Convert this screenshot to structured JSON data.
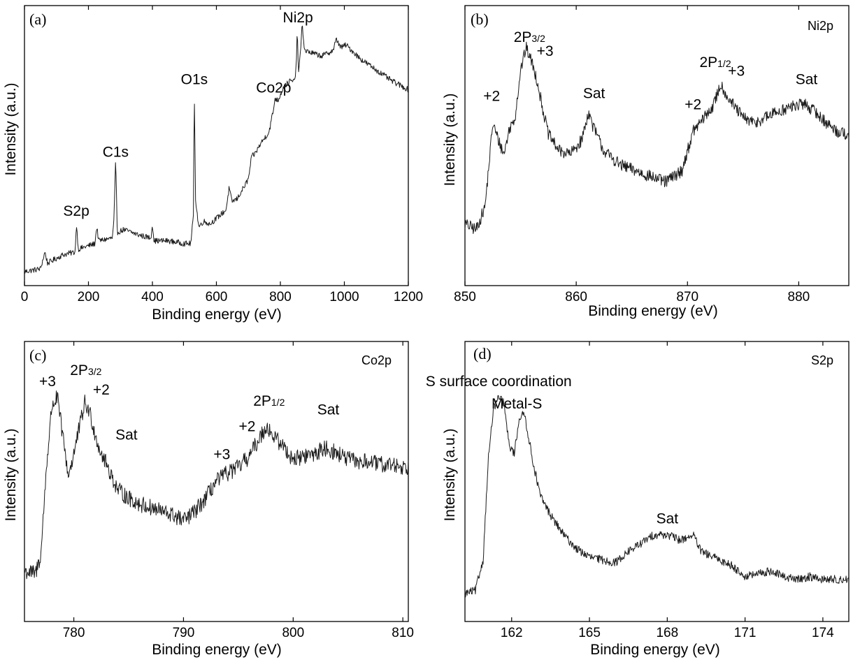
{
  "chart_data": [
    {
      "type": "line",
      "panel_label": "(a)",
      "corner_label": "",
      "xlabel": "Binding energy (eV)",
      "ylabel": "Intensity (a.u.)",
      "xlim": [
        0,
        1200
      ],
      "ylim": [
        0,
        100
      ],
      "xticks": [
        0,
        200,
        400,
        600,
        800,
        1000,
        1200
      ],
      "y_tick_labels": false,
      "grid": false,
      "legend": "none",
      "keypoints": [
        [
          0,
          5
        ],
        [
          50,
          6
        ],
        [
          64,
          12
        ],
        [
          72,
          8
        ],
        [
          120,
          11
        ],
        [
          158,
          12
        ],
        [
          163,
          22
        ],
        [
          168,
          13
        ],
        [
          220,
          15
        ],
        [
          226,
          21
        ],
        [
          232,
          16
        ],
        [
          275,
          17
        ],
        [
          280,
          24
        ],
        [
          285,
          45
        ],
        [
          290,
          19
        ],
        [
          310,
          20
        ],
        [
          360,
          18
        ],
        [
          395,
          17
        ],
        [
          400,
          22
        ],
        [
          405,
          16
        ],
        [
          450,
          16
        ],
        [
          500,
          15
        ],
        [
          520,
          15
        ],
        [
          528,
          25
        ],
        [
          531,
          70
        ],
        [
          535,
          30
        ],
        [
          545,
          21
        ],
        [
          560,
          23
        ],
        [
          580,
          22
        ],
        [
          600,
          24
        ],
        [
          630,
          27
        ],
        [
          640,
          35
        ],
        [
          648,
          30
        ],
        [
          665,
          31
        ],
        [
          700,
          38
        ],
        [
          710,
          46
        ],
        [
          720,
          47
        ],
        [
          740,
          51
        ],
        [
          765,
          55
        ],
        [
          775,
          61
        ],
        [
          779,
          63
        ],
        [
          783,
          67
        ],
        [
          792,
          66
        ],
        [
          810,
          71
        ],
        [
          830,
          73
        ],
        [
          845,
          73
        ],
        [
          850,
          80
        ],
        [
          853,
          92
        ],
        [
          856,
          76
        ],
        [
          862,
          82
        ],
        [
          868,
          93
        ],
        [
          876,
          84
        ],
        [
          900,
          83
        ],
        [
          930,
          82
        ],
        [
          965,
          84
        ],
        [
          975,
          88
        ],
        [
          990,
          85
        ],
        [
          1005,
          86
        ],
        [
          1050,
          81
        ],
        [
          1100,
          77
        ],
        [
          1150,
          73
        ],
        [
          1200,
          70
        ]
      ],
      "noise": 1.0,
      "annotations": [
        {
          "text": "S2p",
          "x": 162,
          "y": 25
        },
        {
          "text": "C1s",
          "x": 285,
          "y": 46
        },
        {
          "text": "O1s",
          "x": 531,
          "y": 72
        },
        {
          "text": "Co2p",
          "x": 779,
          "y": 69
        },
        {
          "text": "Ni2p",
          "x": 855,
          "y": 94
        }
      ]
    },
    {
      "type": "line",
      "panel_label": "(b)",
      "corner_label": "Ni2p",
      "xlabel": "Binding energy (eV)",
      "ylabel": "Intensity (a.u.)",
      "xlim": [
        850,
        884.5
      ],
      "ylim": [
        0,
        100
      ],
      "xticks": [
        850,
        860,
        870,
        880
      ],
      "y_tick_labels": false,
      "grid": false,
      "legend": "none",
      "keypoints": [
        [
          850,
          22
        ],
        [
          851,
          20
        ],
        [
          851.8,
          28
        ],
        [
          852.2,
          45
        ],
        [
          852.5,
          58
        ],
        [
          853,
          52
        ],
        [
          853.5,
          47
        ],
        [
          854,
          56
        ],
        [
          854.5,
          60
        ],
        [
          855,
          77
        ],
        [
          855.5,
          85
        ],
        [
          856,
          80
        ],
        [
          856.5,
          73
        ],
        [
          857,
          63
        ],
        [
          857.5,
          54
        ],
        [
          858.5,
          48
        ],
        [
          859.5,
          47
        ],
        [
          860.5,
          52
        ],
        [
          861.1,
          62
        ],
        [
          861.5,
          57
        ],
        [
          862.5,
          48
        ],
        [
          864,
          43
        ],
        [
          866,
          40
        ],
        [
          868,
          37
        ],
        [
          869.5,
          41
        ],
        [
          870.5,
          55
        ],
        [
          871.5,
          60
        ],
        [
          872.3,
          64
        ],
        [
          873,
          72
        ],
        [
          873.5,
          68
        ],
        [
          874.2,
          64
        ],
        [
          875,
          60
        ],
        [
          876,
          58
        ],
        [
          877,
          60
        ],
        [
          878,
          62
        ],
        [
          879.5,
          64
        ],
        [
          880.5,
          65
        ],
        [
          881.5,
          62
        ],
        [
          882.5,
          58
        ],
        [
          883.5,
          55
        ],
        [
          884.5,
          54
        ]
      ],
      "noise": 2.2,
      "annotations": [
        {
          "text": "+2",
          "x": 852.4,
          "y": 66
        },
        {
          "text": "2P",
          "sub": "3/2",
          "x": 855.8,
          "y": 87
        },
        {
          "text": "+3",
          "x": 857.2,
          "y": 82
        },
        {
          "text": "Sat",
          "x": 861.6,
          "y": 67
        },
        {
          "text": "+2",
          "x": 870.5,
          "y": 63
        },
        {
          "text": "2P",
          "sub": "1/2",
          "x": 872.5,
          "y": 78
        },
        {
          "text": "+3",
          "x": 874.4,
          "y": 75
        },
        {
          "text": "Sat",
          "x": 880.7,
          "y": 72
        }
      ]
    },
    {
      "type": "line",
      "panel_label": "(c)",
      "corner_label": "Co2p",
      "xlabel": "Binding energy (eV)",
      "ylabel": "Intensity (a.u.)",
      "xlim": [
        775.5,
        810.5
      ],
      "ylim": [
        0,
        100
      ],
      "xticks": [
        780,
        790,
        800,
        810
      ],
      "y_tick_labels": false,
      "grid": false,
      "legend": "none",
      "keypoints": [
        [
          775.5,
          18
        ],
        [
          776.5,
          17
        ],
        [
          777,
          24
        ],
        [
          777.5,
          55
        ],
        [
          778,
          77
        ],
        [
          778.5,
          80
        ],
        [
          779,
          66
        ],
        [
          779.5,
          52
        ],
        [
          780,
          60
        ],
        [
          781,
          78
        ],
        [
          781.5,
          74
        ],
        [
          782,
          66
        ],
        [
          782.5,
          60
        ],
        [
          783,
          56
        ],
        [
          784,
          47
        ],
        [
          785,
          44
        ],
        [
          786,
          42
        ],
        [
          787.5,
          40
        ],
        [
          789,
          38
        ],
        [
          790,
          36
        ],
        [
          791,
          39
        ],
        [
          792,
          44
        ],
        [
          793,
          50
        ],
        [
          794,
          53
        ],
        [
          795,
          55
        ],
        [
          796,
          59
        ],
        [
          797,
          66
        ],
        [
          797.6,
          70
        ],
        [
          798,
          67
        ],
        [
          799,
          63
        ],
        [
          800,
          58
        ],
        [
          801,
          59
        ],
        [
          802,
          60
        ],
        [
          803,
          62
        ],
        [
          804,
          60
        ],
        [
          805,
          58
        ],
        [
          806,
          57
        ],
        [
          807,
          57
        ],
        [
          808,
          56
        ],
        [
          809,
          56
        ],
        [
          810.5,
          55
        ]
      ],
      "noise": 3.0,
      "annotations": [
        {
          "text": "+3",
          "x": 777.6,
          "y": 84
        },
        {
          "text": "2P",
          "sub": "3/2",
          "x": 781.1,
          "y": 88
        },
        {
          "text": "+2",
          "x": 782.5,
          "y": 81
        },
        {
          "text": "Sat",
          "x": 784.8,
          "y": 65
        },
        {
          "text": "+3",
          "x": 793.5,
          "y": 58
        },
        {
          "text": "+2",
          "x": 795.8,
          "y": 68
        },
        {
          "text": "2P",
          "sub": "1/2",
          "x": 797.8,
          "y": 77
        },
        {
          "text": "Sat",
          "x": 803.2,
          "y": 74
        }
      ]
    },
    {
      "type": "line",
      "panel_label": "(d)",
      "corner_label": "S2p",
      "xlabel": "Binding energy (eV)",
      "ylabel": "Intensity (a.u.)",
      "xlim": [
        160.2,
        175
      ],
      "ylim": [
        0,
        100
      ],
      "xticks": [
        162,
        165,
        168,
        171,
        174
      ],
      "y_tick_labels": false,
      "grid": false,
      "legend": "none",
      "keypoints": [
        [
          160.2,
          10
        ],
        [
          160.6,
          11
        ],
        [
          160.9,
          22
        ],
        [
          161.1,
          58
        ],
        [
          161.3,
          76
        ],
        [
          161.5,
          80
        ],
        [
          161.7,
          78
        ],
        [
          161.9,
          63
        ],
        [
          162.1,
          60
        ],
        [
          162.3,
          73
        ],
        [
          162.5,
          74
        ],
        [
          162.8,
          58
        ],
        [
          163.1,
          45
        ],
        [
          163.5,
          38
        ],
        [
          164,
          31
        ],
        [
          164.5,
          26
        ],
        [
          165,
          23
        ],
        [
          165.5,
          22
        ],
        [
          166,
          21
        ],
        [
          166.5,
          25
        ],
        [
          167,
          28
        ],
        [
          167.5,
          31
        ],
        [
          168,
          31
        ],
        [
          168.5,
          29
        ],
        [
          169,
          31
        ],
        [
          169.3,
          25
        ],
        [
          170,
          22
        ],
        [
          170.5,
          20
        ],
        [
          171,
          16
        ],
        [
          171.5,
          17
        ],
        [
          172,
          18
        ],
        [
          172.5,
          16
        ],
        [
          173,
          15
        ],
        [
          173.5,
          16
        ],
        [
          174,
          15
        ],
        [
          175,
          15
        ]
      ],
      "noise": 1.5,
      "annotations": [
        {
          "text": "S surface coordination",
          "x": 161.5,
          "y": 84
        },
        {
          "text": "Metal-S",
          "x": 162.2,
          "y": 76
        },
        {
          "text": "Sat",
          "x": 168,
          "y": 35
        }
      ]
    }
  ]
}
